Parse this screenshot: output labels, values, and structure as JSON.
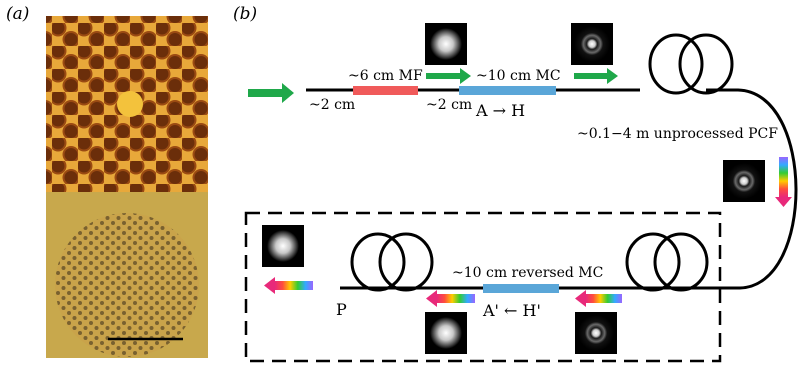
{
  "panels": {
    "a_label": "(a)",
    "b_label": "(b)"
  },
  "labels": {
    "len_2cm_left": "~2 cm",
    "mf": "~6 cm MF",
    "len_2cm_mid": "~2 cm",
    "mc": "~10 cm MC",
    "a_to_h": "A  →  H",
    "pcf": "~0.1−4 m unprocessed PCF",
    "reversed_mc": "~10 cm reversed MC",
    "p": "P",
    "a_prime_h_prime": "A'  ←  H'"
  },
  "colors": {
    "mf_segment": "#f05a5a",
    "mc_segment": "#5aa6d8",
    "green_arrow": "#1fa84a",
    "fiber": "#000000"
  },
  "icons": [
    "green-arrow-icon",
    "rainbow-arrow-icon",
    "beam-mode-image"
  ]
}
